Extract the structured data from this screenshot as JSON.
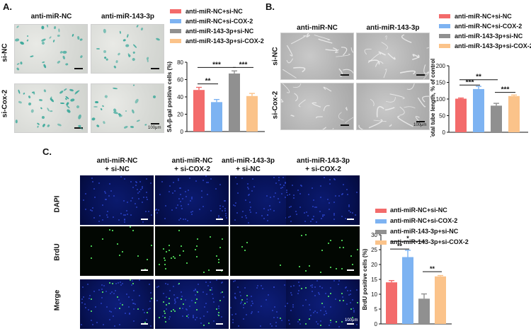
{
  "panels": {
    "a": {
      "label": "A.",
      "col_headers": [
        "anti-miR-NC",
        "anti-miR-143-3p"
      ],
      "row_headers": [
        "si-NC",
        "si-Cox-2"
      ],
      "scale": "100μm"
    },
    "b": {
      "label": "B.",
      "col_headers": [
        "anti-miR-NC",
        "anti-miR-143-3p"
      ],
      "row_headers": [
        "si-NC",
        "si-Cox-2"
      ],
      "scale": "100μm"
    },
    "c": {
      "label": "C.",
      "col_headers": [
        [
          "anti-miR-NC",
          "+ si-NC"
        ],
        [
          "anti-miR-NC",
          "+ si-COX-2"
        ],
        [
          "anti-miR-143-3p",
          "+ si-NC"
        ],
        [
          "anti-miR-143-3p",
          "+ si-COX-2"
        ]
      ],
      "row_headers": [
        "DAPI",
        "BrdU",
        "Merge"
      ],
      "scale": "100μm"
    }
  },
  "colors": {
    "red": "#f36b6b",
    "blue": "#7db3f2",
    "gray": "#909090",
    "orange": "#fbc38a",
    "beta_gal_spot": "#3aa89a"
  },
  "chart_data": [
    {
      "id": "chart-a",
      "type": "bar",
      "legend": [
        "anti-miR-NC+si-NC",
        "anti-miR-NC+si-COX-2",
        "anti-miR-143-3p+si-NC",
        "anti-miR-143-3p+si-COX-2"
      ],
      "categories": [
        "anti-miR-NC+si-NC",
        "anti-miR-NC+si-COX-2",
        "anti-miR-143-3p+si-NC",
        "anti-miR-143-3p+si-COX-2"
      ],
      "values": [
        48,
        34,
        67,
        41
      ],
      "errors": [
        3,
        3,
        3,
        3
      ],
      "ylabel": "SA-β-gal positive cells (%)",
      "yticks": [
        0,
        20,
        40,
        60,
        80
      ],
      "ylim": [
        0,
        80
      ],
      "significance": [
        {
          "from": 0,
          "to": 1,
          "label": "**",
          "y": 55
        },
        {
          "from": 0,
          "to": 2,
          "label": "***",
          "y": 74
        },
        {
          "from": 2,
          "to": 3,
          "label": "***",
          "y": 74
        }
      ]
    },
    {
      "id": "chart-b",
      "type": "bar",
      "legend": [
        "anti-miR-NC+si-NC",
        "anti-miR-NC+si-COX-2",
        "anti-miR-143-3p+si-NC",
        "anti-miR-143-3p+si-COX-2"
      ],
      "categories": [
        "anti-miR-NC+si-NC",
        "anti-miR-NC+si-COX-2",
        "anti-miR-143-3p+si-NC",
        "anti-miR-143-3p+si-COX-2"
      ],
      "values": [
        101,
        130,
        80,
        109
      ],
      "errors": [
        2,
        8,
        7,
        3
      ],
      "ylabel": "Total tube length, % of control",
      "yticks": [
        0,
        50,
        100,
        150,
        200
      ],
      "ylim": [
        0,
        200
      ],
      "significance": [
        {
          "from": 0,
          "to": 1,
          "label": "***",
          "y": 142
        },
        {
          "from": 0,
          "to": 2,
          "label": "**",
          "y": 158
        },
        {
          "from": 2,
          "to": 3,
          "label": "***",
          "y": 120
        }
      ]
    },
    {
      "id": "chart-c",
      "type": "bar",
      "legend": [
        "anti-miR-NC+si-NC",
        "anti-miR-NC+si-COX-2",
        "anti-miR-143-3p+si-NC",
        "anti-miR-143-3p+si-COX-2"
      ],
      "categories": [
        "anti-miR-NC+si-NC",
        "anti-miR-NC+si-COX-2",
        "anti-miR-143-3p+si-NC",
        "anti-miR-143-3p+si-COX-2"
      ],
      "values": [
        14,
        22.5,
        8.5,
        16
      ],
      "errors": [
        0.6,
        2.3,
        1.6,
        0.3
      ],
      "ylabel": "BrdU positive cells (%)",
      "yticks": [
        0,
        5,
        10,
        15,
        20,
        25,
        30
      ],
      "ylim": [
        0,
        30
      ],
      "significance": [
        {
          "from": 0,
          "to": 1,
          "label": "**",
          "y": 25.2
        },
        {
          "from": 0,
          "to": 2,
          "label": "*",
          "y": 27.8
        },
        {
          "from": 2,
          "to": 3,
          "label": "**",
          "y": 17.6
        }
      ]
    }
  ]
}
